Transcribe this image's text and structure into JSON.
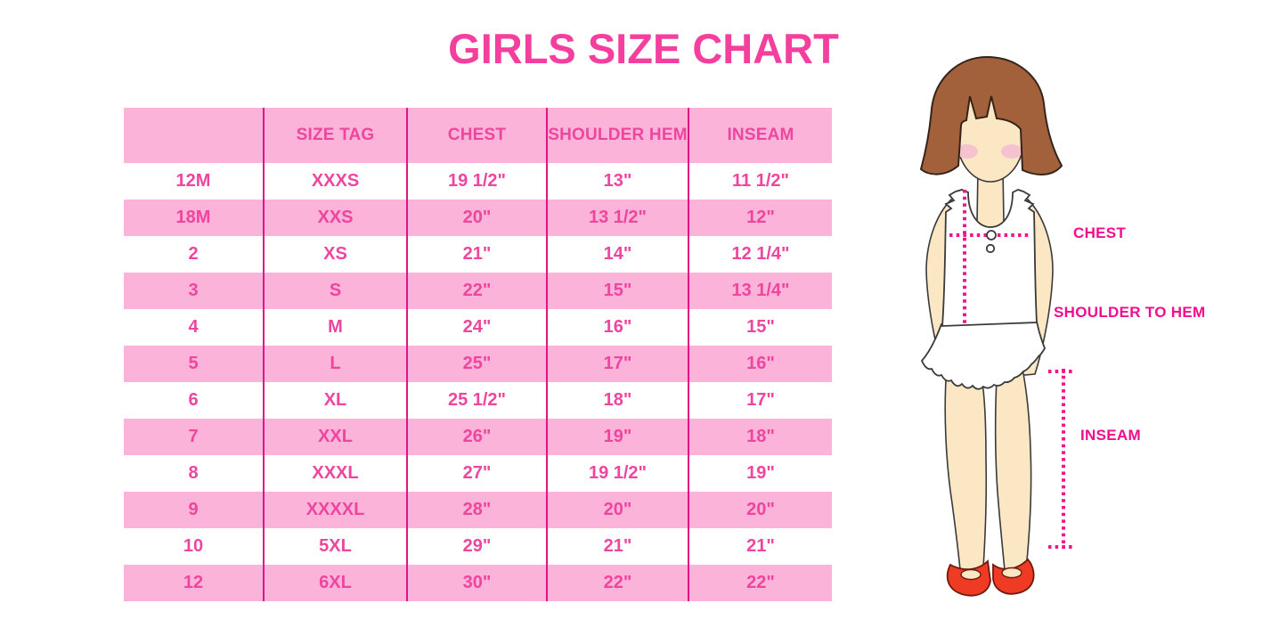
{
  "title": "GIRLS SIZE CHART",
  "measurement_labels": {
    "chest": "CHEST",
    "shoulder_to_hem": "SHOULDER TO HEM",
    "inseam": "INSEAM"
  },
  "colors": {
    "title_pink": "#F43F9E",
    "row_pink": "#FCB3D9",
    "cell_text_pink": "#EE459E",
    "grid_line_magenta": "#E11584",
    "label_magenta": "#F20D8E",
    "dotted_line_magenta": "#F2148C",
    "hair_brown": "#A2613A",
    "skin": "#FBE7C4",
    "blush": "#F5C3CF",
    "shoe_red": "#EF3B24"
  },
  "chart_data": {
    "type": "table",
    "title": "GIRLS SIZE CHART",
    "columns": [
      "",
      "SIZE TAG",
      "CHEST",
      "SHOULDER HEM",
      "INSEAM"
    ],
    "rows": [
      [
        "12M",
        "XXXS",
        "19 1/2\"",
        "13\"",
        "11 1/2\""
      ],
      [
        "18M",
        "XXS",
        "20\"",
        "13 1/2\"",
        "12\""
      ],
      [
        "2",
        "XS",
        "21\"",
        "14\"",
        "12 1/4\""
      ],
      [
        "3",
        "S",
        "22\"",
        "15\"",
        "13 1/4\""
      ],
      [
        "4",
        "M",
        "24\"",
        "16\"",
        "15\""
      ],
      [
        "5",
        "L",
        "25\"",
        "17\"",
        "16\""
      ],
      [
        "6",
        "XL",
        "25 1/2\"",
        "18\"",
        "17\""
      ],
      [
        "7",
        "XXL",
        "26\"",
        "19\"",
        "18\""
      ],
      [
        "8",
        "XXXL",
        "27\"",
        "19 1/2\"",
        "19\""
      ],
      [
        "9",
        "XXXXL",
        "28\"",
        "20\"",
        "20\""
      ],
      [
        "10",
        "5XL",
        "29\"",
        "21\"",
        "21\""
      ],
      [
        "12",
        "6XL",
        "30\"",
        "22\"",
        "22\""
      ]
    ],
    "row_striping": "white/pink alternating, header pink",
    "legend_position": "none",
    "grid": "vertical magenta column separators only"
  }
}
